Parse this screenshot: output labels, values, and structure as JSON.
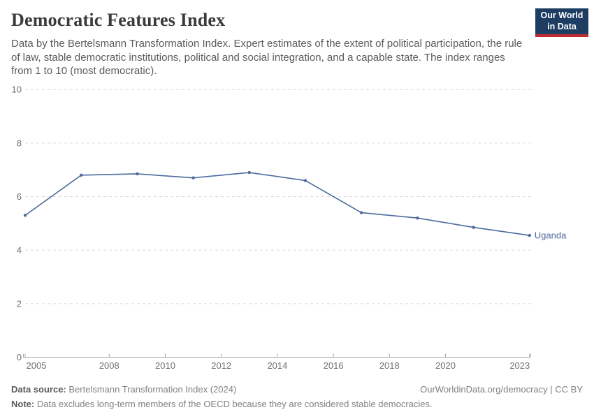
{
  "header": {
    "title": "Democratic Features Index",
    "subtitle_lines": [
      "Data by the Bertelsmann Transformation Index. Expert estimates of the extent of political participation, the rule",
      "of law, stable democratic institutions, political and social integration, and a capable state. The index ranges",
      "from 1 to 10 (most democratic)."
    ],
    "logo": {
      "line1": "Our World",
      "line2": "in Data"
    }
  },
  "chart_data": {
    "type": "line",
    "title": "Democratic Features Index",
    "x": [
      2005,
      2007,
      2009,
      2011,
      2013,
      2015,
      2017,
      2019,
      2021,
      2023
    ],
    "series": [
      {
        "name": "Uganda",
        "color": "#4c6a9c",
        "values": [
          5.3,
          6.8,
          6.85,
          6.7,
          6.9,
          6.6,
          5.4,
          5.2,
          4.85,
          4.55
        ]
      }
    ],
    "xlabel": "",
    "ylabel": "",
    "xlim": [
      2005,
      2023
    ],
    "ylim": [
      0,
      10
    ],
    "xticks": [
      2005,
      2008,
      2010,
      2012,
      2014,
      2016,
      2018,
      2020,
      2023
    ],
    "yticks": [
      0,
      2,
      4,
      6,
      8,
      10
    ],
    "grid": "horizontal-dashed",
    "legend_position": "line-end-label"
  },
  "footer": {
    "source_label": "Data source:",
    "source_text": "Bertelsmann Transformation Index (2024)",
    "note_label": "Note:",
    "note_text": "Data excludes long-term members of the OECD because they are considered stable democracies.",
    "link_text": "OurWorldinData.org/democracy | CC BY"
  },
  "colors": {
    "line": "#4c6a9c",
    "grid": "#dadada",
    "axis": "#a5a5a5",
    "tick_label": "#707070",
    "title": "#3b3b3b",
    "subtitle": "#5b5b5b",
    "logo_bg": "#1d3d63",
    "logo_red": "#c12b33"
  }
}
